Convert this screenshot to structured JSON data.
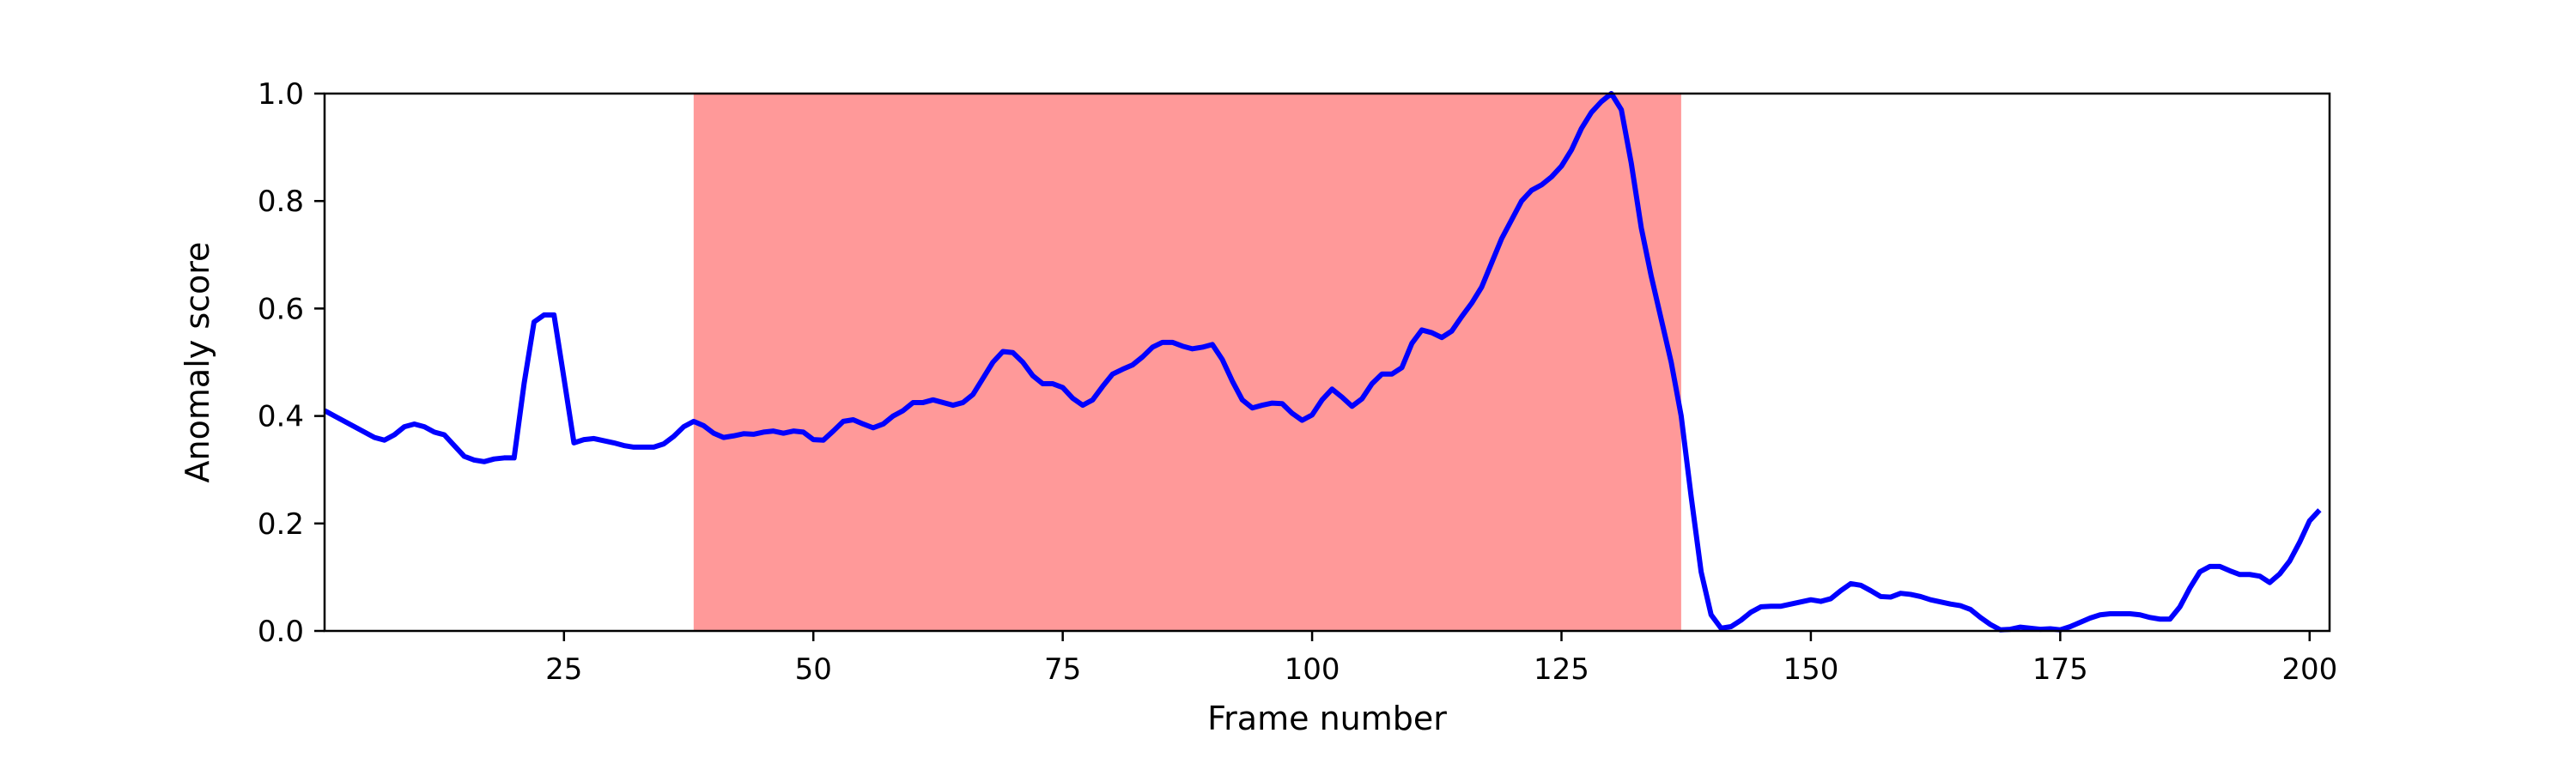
{
  "chart_data": {
    "type": "line",
    "title": "",
    "xlabel": "Frame number",
    "ylabel": "Anomaly score",
    "xlim": [
      1,
      202
    ],
    "ylim": [
      0,
      1
    ],
    "xticks": [
      25,
      50,
      75,
      100,
      125,
      150,
      175,
      200
    ],
    "yticks": [
      0.0,
      0.2,
      0.4,
      0.6,
      0.8,
      1.0
    ],
    "xtick_labels": [
      "25",
      "50",
      "75",
      "100",
      "125",
      "150",
      "175",
      "200"
    ],
    "ytick_labels": [
      "0.0",
      "0.2",
      "0.4",
      "0.6",
      "0.8",
      "1.0"
    ],
    "grid": false,
    "line_color": "#0000ff",
    "highlight_color": "#ff9999",
    "highlight_region": {
      "x_start": 38,
      "x_end": 137
    },
    "series": [
      {
        "name": "",
        "points": [
          [
            1,
            0.41
          ],
          [
            2,
            0.4
          ],
          [
            3,
            0.39
          ],
          [
            4,
            0.38
          ],
          [
            5,
            0.37
          ],
          [
            6,
            0.36
          ],
          [
            7,
            0.355
          ],
          [
            8,
            0.365
          ],
          [
            9,
            0.38
          ],
          [
            10,
            0.385
          ],
          [
            11,
            0.38
          ],
          [
            12,
            0.37
          ],
          [
            13,
            0.365
          ],
          [
            14,
            0.345
          ],
          [
            15,
            0.325
          ],
          [
            16,
            0.318
          ],
          [
            17,
            0.315
          ],
          [
            18,
            0.32
          ],
          [
            19,
            0.322
          ],
          [
            20,
            0.322
          ],
          [
            21,
            0.46
          ],
          [
            22,
            0.575
          ],
          [
            23,
            0.588
          ],
          [
            24,
            0.588
          ],
          [
            25,
            0.47
          ],
          [
            26,
            0.35
          ],
          [
            27,
            0.356
          ],
          [
            28,
            0.358
          ],
          [
            29,
            0.354
          ],
          [
            30,
            0.35
          ],
          [
            31,
            0.345
          ],
          [
            32,
            0.342
          ],
          [
            33,
            0.342
          ],
          [
            34,
            0.342
          ],
          [
            35,
            0.348
          ],
          [
            36,
            0.362
          ],
          [
            37,
            0.38
          ],
          [
            38,
            0.39
          ],
          [
            39,
            0.382
          ],
          [
            40,
            0.368
          ],
          [
            41,
            0.36
          ],
          [
            42,
            0.363
          ],
          [
            43,
            0.367
          ],
          [
            44,
            0.366
          ],
          [
            45,
            0.37
          ],
          [
            46,
            0.372
          ],
          [
            47,
            0.368
          ],
          [
            48,
            0.372
          ],
          [
            49,
            0.37
          ],
          [
            50,
            0.356
          ],
          [
            51,
            0.355
          ],
          [
            52,
            0.372
          ],
          [
            53,
            0.39
          ],
          [
            54,
            0.393
          ],
          [
            55,
            0.385
          ],
          [
            56,
            0.378
          ],
          [
            57,
            0.385
          ],
          [
            58,
            0.4
          ],
          [
            59,
            0.41
          ],
          [
            60,
            0.425
          ],
          [
            61,
            0.425
          ],
          [
            62,
            0.43
          ],
          [
            63,
            0.425
          ],
          [
            64,
            0.42
          ],
          [
            65,
            0.425
          ],
          [
            66,
            0.44
          ],
          [
            67,
            0.47
          ],
          [
            68,
            0.5
          ],
          [
            69,
            0.52
          ],
          [
            70,
            0.518
          ],
          [
            71,
            0.5
          ],
          [
            72,
            0.475
          ],
          [
            73,
            0.46
          ],
          [
            74,
            0.46
          ],
          [
            75,
            0.453
          ],
          [
            76,
            0.433
          ],
          [
            77,
            0.42
          ],
          [
            78,
            0.43
          ],
          [
            79,
            0.455
          ],
          [
            80,
            0.478
          ],
          [
            81,
            0.487
          ],
          [
            82,
            0.495
          ],
          [
            83,
            0.51
          ],
          [
            84,
            0.528
          ],
          [
            85,
            0.537
          ],
          [
            86,
            0.537
          ],
          [
            87,
            0.53
          ],
          [
            88,
            0.525
          ],
          [
            89,
            0.528
          ],
          [
            90,
            0.533
          ],
          [
            91,
            0.505
          ],
          [
            92,
            0.465
          ],
          [
            93,
            0.43
          ],
          [
            94,
            0.415
          ],
          [
            95,
            0.42
          ],
          [
            96,
            0.424
          ],
          [
            97,
            0.423
          ],
          [
            98,
            0.405
          ],
          [
            99,
            0.392
          ],
          [
            100,
            0.402
          ],
          [
            101,
            0.43
          ],
          [
            102,
            0.45
          ],
          [
            103,
            0.435
          ],
          [
            104,
            0.418
          ],
          [
            105,
            0.432
          ],
          [
            106,
            0.46
          ],
          [
            107,
            0.478
          ],
          [
            108,
            0.478
          ],
          [
            109,
            0.49
          ],
          [
            110,
            0.535
          ],
          [
            111,
            0.56
          ],
          [
            112,
            0.555
          ],
          [
            113,
            0.546
          ],
          [
            114,
            0.558
          ],
          [
            115,
            0.585
          ],
          [
            116,
            0.61
          ],
          [
            117,
            0.64
          ],
          [
            118,
            0.685
          ],
          [
            119,
            0.73
          ],
          [
            120,
            0.765
          ],
          [
            121,
            0.8
          ],
          [
            122,
            0.82
          ],
          [
            123,
            0.83
          ],
          [
            124,
            0.845
          ],
          [
            125,
            0.865
          ],
          [
            126,
            0.895
          ],
          [
            127,
            0.935
          ],
          [
            128,
            0.965
          ],
          [
            129,
            0.985
          ],
          [
            130,
            1.0
          ],
          [
            131,
            0.97
          ],
          [
            132,
            0.87
          ],
          [
            133,
            0.75
          ],
          [
            134,
            0.66
          ],
          [
            135,
            0.58
          ],
          [
            136,
            0.5
          ],
          [
            137,
            0.4
          ],
          [
            138,
            0.25
          ],
          [
            139,
            0.11
          ],
          [
            140,
            0.03
          ],
          [
            141,
            0.005
          ],
          [
            142,
            0.008
          ],
          [
            143,
            0.02
          ],
          [
            144,
            0.035
          ],
          [
            145,
            0.045
          ],
          [
            146,
            0.046
          ],
          [
            147,
            0.046
          ],
          [
            148,
            0.05
          ],
          [
            149,
            0.054
          ],
          [
            150,
            0.058
          ],
          [
            151,
            0.055
          ],
          [
            152,
            0.06
          ],
          [
            153,
            0.075
          ],
          [
            154,
            0.088
          ],
          [
            155,
            0.085
          ],
          [
            156,
            0.075
          ],
          [
            157,
            0.064
          ],
          [
            158,
            0.063
          ],
          [
            159,
            0.07
          ],
          [
            160,
            0.068
          ],
          [
            161,
            0.064
          ],
          [
            162,
            0.058
          ],
          [
            163,
            0.054
          ],
          [
            164,
            0.05
          ],
          [
            165,
            0.047
          ],
          [
            166,
            0.04
          ],
          [
            167,
            0.025
          ],
          [
            168,
            0.012
          ],
          [
            169,
            0.002
          ],
          [
            170,
            0.003
          ],
          [
            171,
            0.007
          ],
          [
            172,
            0.005
          ],
          [
            173,
            0.003
          ],
          [
            174,
            0.004
          ],
          [
            175,
            0.002
          ],
          [
            176,
            0.008
          ],
          [
            177,
            0.016
          ],
          [
            178,
            0.024
          ],
          [
            179,
            0.03
          ],
          [
            180,
            0.032
          ],
          [
            181,
            0.032
          ],
          [
            182,
            0.032
          ],
          [
            183,
            0.03
          ],
          [
            184,
            0.025
          ],
          [
            185,
            0.022
          ],
          [
            186,
            0.022
          ],
          [
            187,
            0.045
          ],
          [
            188,
            0.08
          ],
          [
            189,
            0.11
          ],
          [
            190,
            0.12
          ],
          [
            191,
            0.12
          ],
          [
            192,
            0.112
          ],
          [
            193,
            0.105
          ],
          [
            194,
            0.105
          ],
          [
            195,
            0.102
          ],
          [
            196,
            0.09
          ],
          [
            197,
            0.106
          ],
          [
            198,
            0.13
          ],
          [
            199,
            0.165
          ],
          [
            200,
            0.205
          ],
          [
            201,
            0.225
          ]
        ]
      }
    ]
  }
}
